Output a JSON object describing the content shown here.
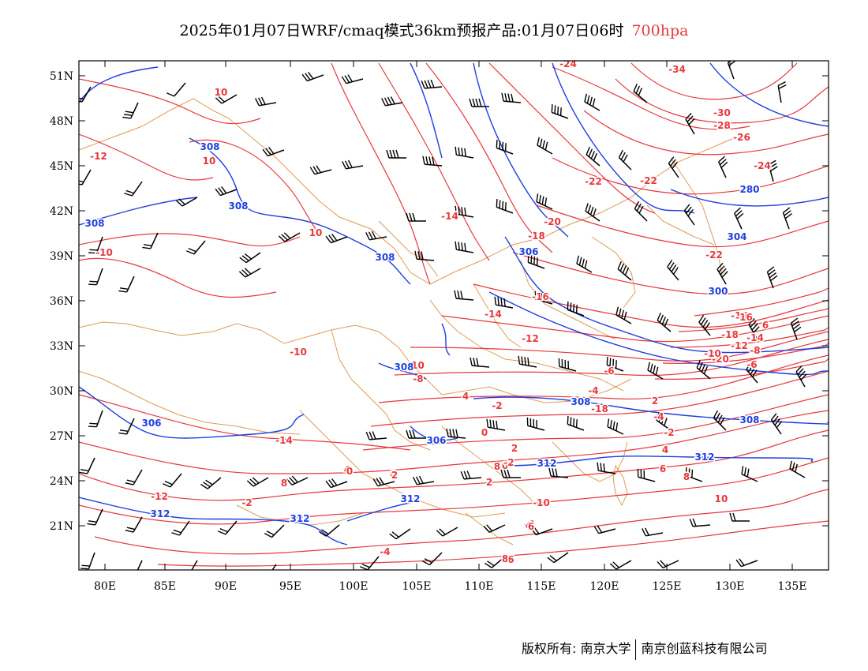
{
  "title": {
    "main": "2025年01月07日WRF/cmaq模式36km预报产品:01月07日06时",
    "level": "700hpa"
  },
  "colors": {
    "temperature": "#e8383c",
    "geopotential": "#1f3fe0",
    "boundary": "#d9893a",
    "wind": "#000000"
  },
  "axes": {
    "lon_ticks": [
      "80E",
      "85E",
      "90E",
      "95E",
      "100E",
      "105E",
      "110E",
      "115E",
      "120E",
      "125E",
      "130E",
      "135E"
    ],
    "lat_ticks": [
      "51N",
      "48N",
      "45N",
      "42N",
      "39N",
      "36N",
      "33N",
      "30N",
      "27N",
      "24N",
      "21N"
    ]
  },
  "isotherm_labels": [
    "-8",
    "-12",
    "-10",
    "10",
    "10",
    "-10",
    "-14",
    "-24",
    "-34",
    "-30",
    "-28",
    "-26",
    "-24",
    "-22",
    "-22",
    "-20",
    "-22",
    "-18",
    "-16",
    "-14",
    "-12",
    "-10",
    "-8",
    "-6",
    "-4",
    "-2",
    "0",
    "2",
    "4",
    "6",
    "8",
    "10",
    "-20",
    "-18",
    "-16",
    "-14",
    "-12",
    "-10",
    "-8",
    "-6",
    "-4",
    "-2",
    "0",
    "2",
    "4",
    "6",
    "8",
    "-2",
    "-4",
    "-6",
    "-8",
    "-10",
    "-12",
    "-14",
    "-16",
    "-18",
    "2",
    "4",
    "6",
    "8",
    "-2",
    "0",
    "2",
    "4",
    "6",
    "8",
    "10"
  ],
  "height_labels": [
    "308",
    "308",
    "308",
    "308",
    "308",
    "306",
    "304",
    "300",
    "280",
    "312",
    "312",
    "312",
    "312",
    "306",
    "306",
    "308",
    "308",
    "312"
  ],
  "footer": {
    "copyright": "版权所有: 南京大学",
    "company": "南京创蓝科技有限公司"
  }
}
